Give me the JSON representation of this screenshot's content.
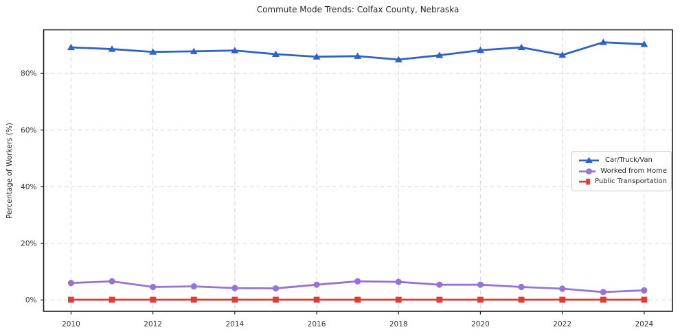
{
  "chart_data": {
    "type": "line",
    "title": "Commute Mode Trends: Colfax County, Nebraska",
    "xlabel": "",
    "ylabel": "Percentage of Workers (%)",
    "x": [
      2010,
      2011,
      2012,
      2013,
      2014,
      2015,
      2016,
      2017,
      2018,
      2019,
      2020,
      2021,
      2022,
      2023,
      2024
    ],
    "xticks": [
      2010,
      2012,
      2014,
      2016,
      2018,
      2020,
      2022,
      2024
    ],
    "xtick_labels": [
      "2010",
      "2012",
      "2014",
      "2016",
      "2018",
      "2020",
      "2022",
      "2024"
    ],
    "ytick_values": [
      0,
      20,
      40,
      60,
      80
    ],
    "ytick_labels": [
      "0%",
      "20%",
      "40%",
      "60%",
      "80%"
    ],
    "xlim": [
      2009.33,
      2024.69
    ],
    "ylim": [
      -4.0,
      95.4
    ],
    "grid": true,
    "grid_style": "dashed",
    "legend_position": "center-right",
    "series": [
      {
        "name": "Car/Truck/Van",
        "color": "#2f62c4",
        "marker": "triangle",
        "values": [
          89.2,
          88.6,
          87.6,
          87.8,
          88.1,
          86.8,
          85.9,
          86.1,
          84.9,
          86.4,
          88.2,
          89.2,
          86.5,
          91.0,
          90.3
        ]
      },
      {
        "name": "Worked from Home",
        "color": "#9673d8",
        "marker": "circle",
        "values": [
          6.0,
          6.6,
          4.6,
          4.8,
          4.2,
          4.1,
          5.4,
          6.6,
          6.4,
          5.4,
          5.4,
          4.6,
          4.0,
          2.8,
          3.4
        ]
      },
      {
        "name": "Public Transportation",
        "color": "#e13c3c",
        "marker": "square",
        "values": [
          0.1,
          0.1,
          0.1,
          0.1,
          0.1,
          0.1,
          0.1,
          0.1,
          0.1,
          0.1,
          0.1,
          0.1,
          0.1,
          0.1,
          0.1
        ]
      }
    ],
    "colors": {
      "grid": "#d9d9d9",
      "spine": "#1a1a1a",
      "text": "#262626",
      "background": "#ffffff"
    }
  }
}
